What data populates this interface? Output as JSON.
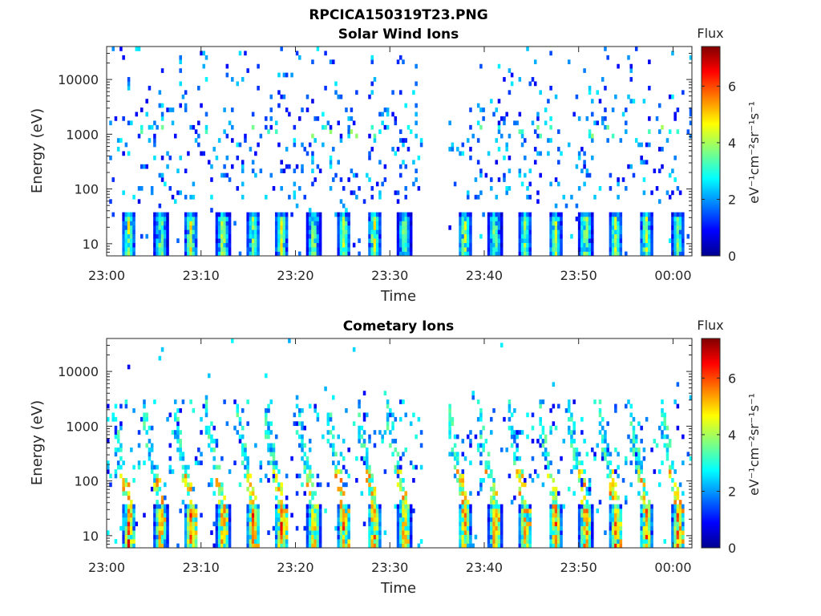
{
  "figure": {
    "title": "RPCICA150319T23.PNG"
  },
  "chart_data": [
    {
      "type": "heatmap",
      "title": "Solar Wind Ions",
      "xlabel": "Time",
      "ylabel": "Energy (eV)",
      "x_ticks": [
        "23:00",
        "23:10",
        "23:20",
        "23:30",
        "23:40",
        "23:50",
        "00:00"
      ],
      "y_ticks": [
        "10",
        "100",
        "1000",
        "10000"
      ],
      "y_scale": "log",
      "ylim": [
        6,
        40000
      ],
      "xlim_minutes": [
        0,
        62
      ],
      "data_gap_minutes": [
        33.2,
        36.2
      ],
      "colorbar": {
        "label": "eV⁻¹cm⁻²sr⁻¹s⁻¹",
        "title": "Flux",
        "ticks": [
          "0",
          "2",
          "4",
          "6"
        ],
        "range": [
          0,
          7.4
        ],
        "colormap": "jet"
      },
      "low_energy_bursts": [
        {
          "t": 2.2,
          "peak": 4.6
        },
        {
          "t": 5.6,
          "peak": 4.2
        },
        {
          "t": 8.8,
          "peak": 4.8
        },
        {
          "t": 12.2,
          "peak": 4.6
        },
        {
          "t": 15.4,
          "peak": 4.2
        },
        {
          "t": 18.4,
          "peak": 4.6
        },
        {
          "t": 21.8,
          "peak": 4.4
        },
        {
          "t": 25.0,
          "peak": 4.4
        },
        {
          "t": 28.2,
          "peak": 4.8
        },
        {
          "t": 31.4,
          "peak": 4.2
        },
        {
          "t": 37.8,
          "peak": 4.6
        },
        {
          "t": 41.0,
          "peak": 4.2
        },
        {
          "t": 44.2,
          "peak": 4.0
        },
        {
          "t": 47.4,
          "peak": 4.4
        },
        {
          "t": 50.6,
          "peak": 4.8
        },
        {
          "t": 53.8,
          "peak": 4.4
        },
        {
          "t": 57.0,
          "peak": 4.6
        },
        {
          "t": 60.4,
          "peak": 4.0
        }
      ],
      "scatter_level": "sparse"
    },
    {
      "type": "heatmap",
      "title": "Cometary Ions",
      "xlabel": "Time",
      "ylabel": "Energy (eV)",
      "x_ticks": [
        "23:00",
        "23:10",
        "23:20",
        "23:30",
        "23:40",
        "23:50",
        "00:00"
      ],
      "y_ticks": [
        "10",
        "100",
        "1000",
        "10000"
      ],
      "y_scale": "log",
      "ylim": [
        6,
        40000
      ],
      "xlim_minutes": [
        0,
        62
      ],
      "data_gap_minutes": [
        33.2,
        36.2
      ],
      "colorbar": {
        "label": "eV⁻¹cm⁻²sr⁻¹s⁻¹",
        "title": "Flux",
        "ticks": [
          "0",
          "2",
          "4",
          "6"
        ],
        "range": [
          0,
          7.4
        ],
        "colormap": "jet"
      },
      "low_energy_bursts": [
        {
          "t": 2.2,
          "peak": 6.2
        },
        {
          "t": 5.6,
          "peak": 6.0
        },
        {
          "t": 8.8,
          "peak": 6.2
        },
        {
          "t": 12.2,
          "peak": 6.0
        },
        {
          "t": 15.4,
          "peak": 6.6
        },
        {
          "t": 18.4,
          "peak": 6.4
        },
        {
          "t": 21.8,
          "peak": 6.0
        },
        {
          "t": 25.0,
          "peak": 6.0
        },
        {
          "t": 28.2,
          "peak": 6.4
        },
        {
          "t": 31.4,
          "peak": 6.0
        },
        {
          "t": 37.8,
          "peak": 6.4
        },
        {
          "t": 41.0,
          "peak": 6.0
        },
        {
          "t": 44.2,
          "peak": 6.0
        },
        {
          "t": 47.4,
          "peak": 6.2
        },
        {
          "t": 50.6,
          "peak": 6.4
        },
        {
          "t": 53.8,
          "peak": 6.0
        },
        {
          "t": 57.0,
          "peak": 6.2
        },
        {
          "t": 60.4,
          "peak": 6.0
        }
      ],
      "scatter_level": "dense"
    }
  ]
}
